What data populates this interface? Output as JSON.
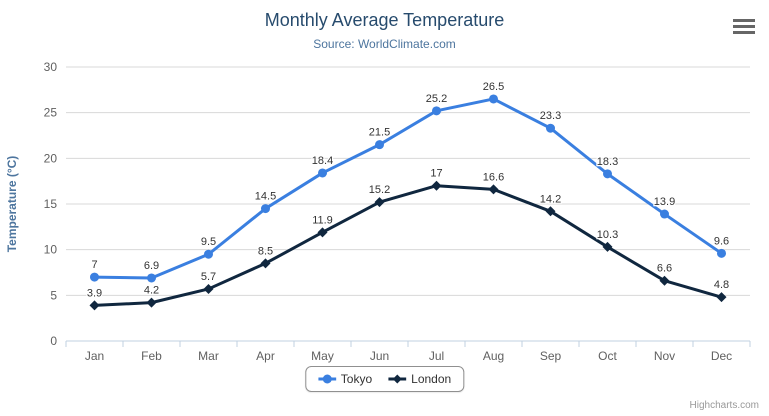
{
  "chart": {
    "title": "Monthly Average Temperature",
    "subtitle": "Source: WorldClimate.com",
    "credit": "Highcharts.com",
    "menu_icon": "hamburger-icon",
    "colors": {
      "title": "#274b6d",
      "subtitle": "#4d759e",
      "axis_title": "#4d759e",
      "axis_labels": "#606060",
      "gridline": "#d8d8d8",
      "axis_line": "#c0d0e0",
      "data_label": "#333333",
      "legend_border": "#909090",
      "credit_text": "#999999",
      "menu_icon": "#666666"
    }
  },
  "chart_data": {
    "type": "line",
    "title": "Monthly Average Temperature",
    "subtitle": "Source: WorldClimate.com",
    "categories": [
      "Jan",
      "Feb",
      "Mar",
      "Apr",
      "May",
      "Jun",
      "Jul",
      "Aug",
      "Sep",
      "Oct",
      "Nov",
      "Dec"
    ],
    "series": [
      {
        "name": "Tokyo",
        "color": "#3a7fe0",
        "marker": "circle",
        "values": [
          7,
          6.9,
          9.5,
          14.5,
          18.4,
          21.5,
          25.2,
          26.5,
          23.3,
          18.3,
          13.9,
          9.6
        ]
      },
      {
        "name": "London",
        "color": "#10273f",
        "marker": "diamond",
        "values": [
          3.9,
          4.2,
          5.7,
          8.5,
          11.9,
          15.2,
          17,
          16.6,
          14.2,
          10.3,
          6.6,
          4.8
        ]
      }
    ],
    "xlabel": "",
    "ylabel": "Temperature (°C)",
    "ylim": [
      0,
      30
    ],
    "yticks": [
      0,
      5,
      10,
      15,
      20,
      25,
      30
    ],
    "grid": true,
    "data_labels": true,
    "legend_position": "bottom"
  }
}
